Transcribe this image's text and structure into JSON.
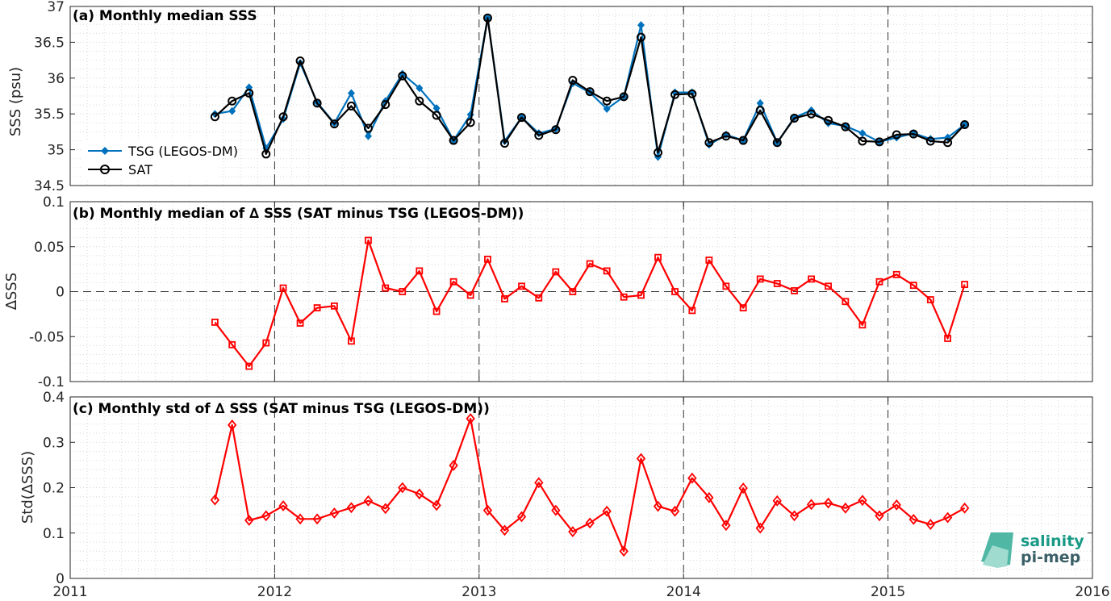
{
  "chart_data": [
    {
      "type": "line",
      "title": "(a) Monthly median SSS",
      "ylabel": "SSS (psu)",
      "ylim": [
        34.5,
        37
      ],
      "yticks": [
        "34.5",
        "35",
        "35.5",
        "36",
        "36.5",
        "37"
      ],
      "grid": true,
      "legend_position": "bottom-left",
      "x": [
        2011.708,
        2011.792,
        2011.875,
        2011.958,
        2012.042,
        2012.125,
        2012.208,
        2012.292,
        2012.375,
        2012.458,
        2012.542,
        2012.625,
        2012.708,
        2012.792,
        2012.875,
        2012.958,
        2013.042,
        2013.125,
        2013.208,
        2013.292,
        2013.375,
        2013.458,
        2013.542,
        2013.625,
        2013.708,
        2013.792,
        2013.875,
        2013.958,
        2014.042,
        2014.125,
        2014.208,
        2014.292,
        2014.375,
        2014.458,
        2014.542,
        2014.625,
        2014.708,
        2014.792,
        2014.875,
        2014.958,
        2015.042,
        2015.125,
        2015.208,
        2015.292,
        2015.375
      ],
      "series": [
        {
          "name": "TSG (LEGOS-DM)",
          "color": "#0072bd",
          "marker": "diamond-filled",
          "values": [
            35.5,
            35.54,
            35.87,
            35.02,
            35.43,
            36.21,
            35.66,
            35.37,
            35.79,
            35.19,
            35.68,
            36.06,
            35.86,
            35.58,
            35.13,
            35.49,
            36.84,
            35.12,
            35.45,
            35.23,
            35.29,
            35.93,
            35.8,
            35.57,
            35.74,
            36.74,
            34.9,
            35.8,
            35.8,
            35.07,
            35.21,
            35.13,
            35.65,
            35.1,
            35.45,
            35.55,
            35.37,
            35.33,
            35.23,
            35.11,
            35.17,
            35.23,
            35.15,
            35.17,
            35.35
          ]
        },
        {
          "name": "SAT",
          "color": "#000000",
          "marker": "circle-open",
          "values": [
            35.46,
            35.68,
            35.79,
            34.94,
            35.46,
            36.24,
            35.65,
            35.36,
            35.61,
            35.3,
            35.63,
            36.03,
            35.68,
            35.48,
            35.13,
            35.38,
            36.84,
            35.09,
            35.45,
            35.2,
            35.28,
            35.97,
            35.81,
            35.68,
            35.74,
            36.57,
            34.96,
            35.77,
            35.78,
            35.1,
            35.19,
            35.13,
            35.55,
            35.1,
            35.44,
            35.5,
            35.41,
            35.32,
            35.12,
            35.11,
            35.21,
            35.22,
            35.12,
            35.1,
            35.35
          ]
        }
      ]
    },
    {
      "type": "line",
      "title": "(b) Monthly median of ∆ SSS (SAT minus TSG (LEGOS-DM))",
      "ylabel": "∆SSS",
      "ylim": [
        -0.1,
        0.1
      ],
      "yticks": [
        "-0.1",
        "-0.05",
        "0",
        "0.05",
        "0.1"
      ],
      "grid": true,
      "zero_line": true,
      "x": [
        2011.708,
        2011.792,
        2011.875,
        2011.958,
        2012.042,
        2012.125,
        2012.208,
        2012.292,
        2012.375,
        2012.458,
        2012.542,
        2012.625,
        2012.708,
        2012.792,
        2012.875,
        2012.958,
        2013.042,
        2013.125,
        2013.208,
        2013.292,
        2013.375,
        2013.458,
        2013.542,
        2013.625,
        2013.708,
        2013.792,
        2013.875,
        2013.958,
        2014.042,
        2014.125,
        2014.208,
        2014.292,
        2014.375,
        2014.458,
        2014.542,
        2014.625,
        2014.708,
        2014.792,
        2014.875,
        2014.958,
        2015.042,
        2015.125,
        2015.208,
        2015.292,
        2015.375
      ],
      "series": [
        {
          "color": "#ff0000",
          "marker": "square-open",
          "values": [
            -0.034,
            -0.059,
            -0.083,
            -0.057,
            0.004,
            -0.035,
            -0.018,
            -0.016,
            -0.055,
            0.057,
            0.004,
            0.0,
            0.023,
            -0.022,
            0.011,
            -0.004,
            0.036,
            -0.008,
            0.006,
            -0.007,
            0.022,
            0.0,
            0.031,
            0.023,
            -0.006,
            -0.004,
            0.038,
            0.0,
            -0.021,
            0.035,
            0.006,
            -0.018,
            0.014,
            0.009,
            0.001,
            0.014,
            0.006,
            -0.011,
            -0.037,
            0.011,
            0.019,
            0.007,
            -0.009,
            -0.052,
            0.008
          ]
        }
      ]
    },
    {
      "type": "line",
      "title": "(c) Monthly std of ∆ SSS (SAT minus TSG (LEGOS-DM))",
      "ylabel": "Std(∆SSS)",
      "ylim": [
        0,
        0.4
      ],
      "yticks": [
        "0",
        "0.1",
        "0.2",
        "0.3",
        "0.4"
      ],
      "xticks": [
        "2011",
        "2012",
        "2013",
        "2014",
        "2015",
        "2016"
      ],
      "xlim": [
        2011,
        2016
      ],
      "grid": true,
      "x": [
        2011.708,
        2011.792,
        2011.875,
        2011.958,
        2012.042,
        2012.125,
        2012.208,
        2012.292,
        2012.375,
        2012.458,
        2012.542,
        2012.625,
        2012.708,
        2012.792,
        2012.875,
        2012.958,
        2013.042,
        2013.125,
        2013.208,
        2013.292,
        2013.375,
        2013.458,
        2013.542,
        2013.625,
        2013.708,
        2013.792,
        2013.875,
        2013.958,
        2014.042,
        2014.125,
        2014.208,
        2014.292,
        2014.375,
        2014.458,
        2014.542,
        2014.625,
        2014.708,
        2014.792,
        2014.875,
        2014.958,
        2015.042,
        2015.125,
        2015.208,
        2015.292,
        2015.375
      ],
      "series": [
        {
          "color": "#ff0000",
          "marker": "diamond-open",
          "values": [
            0.173,
            0.338,
            0.128,
            0.138,
            0.16,
            0.131,
            0.131,
            0.144,
            0.156,
            0.171,
            0.154,
            0.2,
            0.186,
            0.161,
            0.249,
            0.352,
            0.15,
            0.106,
            0.136,
            0.211,
            0.15,
            0.103,
            0.122,
            0.148,
            0.06,
            0.264,
            0.159,
            0.148,
            0.221,
            0.178,
            0.117,
            0.199,
            0.111,
            0.171,
            0.138,
            0.163,
            0.166,
            0.155,
            0.172,
            0.138,
            0.162,
            0.13,
            0.119,
            0.134,
            0.155
          ]
        }
      ]
    }
  ],
  "logo": {
    "line1": "salinity",
    "line2": "pi-mep"
  }
}
